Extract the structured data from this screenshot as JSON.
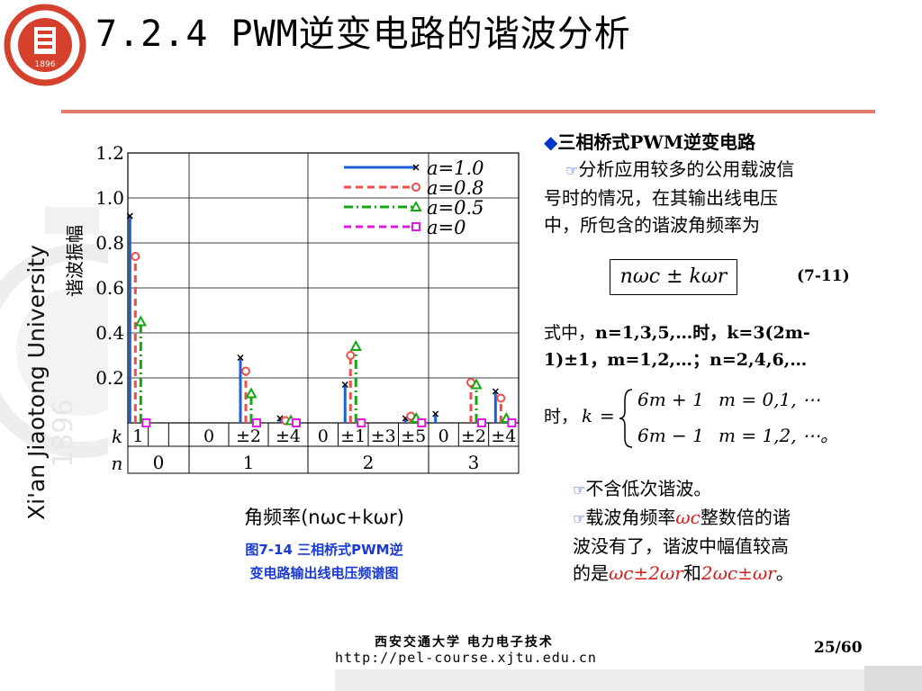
{
  "slide": {
    "title": "7.2.4 PWM逆变电路的谐波分析",
    "logo_year": "1896",
    "university": "Xi'an Jiaotong University",
    "watermark_year": "1896",
    "page": "25/60",
    "footer_cn": "西安交通大学 电力电子技术",
    "footer_url": "http://pel-course.xjtu.edu.cn"
  },
  "right_panel": {
    "bullet_glyph": "◆",
    "bullet": "三相桥式PWM逆变电路",
    "hand_glyph": "☞",
    "para1_line1": "分析应用较多的公用载波信",
    "para1_line2": "号时的情况，在其输出线电压",
    "para1_line3": "中，所包含的谐波角频率为",
    "formula": "nωc ± kωr",
    "eq_number": "(7-11)",
    "cond_line1_a": "式中，",
    "cond_line1_b": "n=1,3,5,…时，k=3(2m-",
    "cond_line2": "1)±1，m=1,2,…；n=2,4,6,…",
    "piece_prefix": "时，",
    "piece_k": "k",
    "piece_eq": "=",
    "piece_case1": "6m + 1",
    "piece_cond1": "m = 0,1, ⋯",
    "piece_case2": "6m − 1",
    "piece_cond2": "m = 1,2, ⋯。",
    "note1": "不含低次谐波。",
    "note2_line1_a": "载波角频率",
    "note2_line1_b": "ωc",
    "note2_line1_c": "整数倍的谐",
    "note2_line2": "波没有了，谐波中幅值较高",
    "note2_line3_a": "的是",
    "note2_line3_b": "ωc±2ωr",
    "note2_line3_c": "和",
    "note2_line3_d": "2ωc±ωr",
    "note2_line3_e": "。"
  },
  "chart_data": {
    "type": "bar",
    "ylabel": "谐波振幅",
    "xlabel": "角频率(nωc+kωr)",
    "caption_line1": "图7-14  三相桥式PWM逆",
    "caption_line2": "变电路输出线电压频谱图",
    "ylim": [
      0,
      1.2
    ],
    "yticks": [
      "1.2",
      "1.0",
      "0.8",
      "0.6",
      "0.4",
      "0.2"
    ],
    "row_labels": {
      "k": "k",
      "n": "n"
    },
    "groups": [
      {
        "n": "0",
        "k_labels": [
          "1",
          "",
          ""
        ]
      },
      {
        "n": "1",
        "k_labels": [
          "0",
          "±2",
          "±4"
        ]
      },
      {
        "n": "2",
        "k_labels": [
          "0",
          "±1",
          "±3",
          "±5"
        ]
      },
      {
        "n": "3",
        "k_labels": [
          "0",
          "±2",
          "±4"
        ]
      }
    ],
    "legend": [
      {
        "label": "a=1.0",
        "color": "#1f5fd6",
        "marker": "x",
        "dash": "solid"
      },
      {
        "label": "a=0.8",
        "color": "#ef4c4c",
        "marker": "o",
        "dash": "dash"
      },
      {
        "label": "a=0.5",
        "color": "#13a813",
        "marker": "tri",
        "dash": "dashdot"
      },
      {
        "label": "a=0",
        "color": "#e01ae0",
        "marker": "sq",
        "dash": "dash"
      }
    ],
    "series": [
      {
        "name": "a=1.0",
        "values": [
          {
            "group": 0,
            "k": "1",
            "y": 0.92
          },
          {
            "group": 1,
            "k": "±2",
            "y": 0.29
          },
          {
            "group": 1,
            "k": "±4",
            "y": 0.02
          },
          {
            "group": 2,
            "k": "±1",
            "y": 0.17
          },
          {
            "group": 2,
            "k": "±5",
            "y": 0.02
          },
          {
            "group": 3,
            "k": "0",
            "y": 0.04
          },
          {
            "group": 3,
            "k": "±4",
            "y": 0.14
          }
        ]
      },
      {
        "name": "a=0.8",
        "values": [
          {
            "group": 0,
            "k": "1",
            "y": 0.74
          },
          {
            "group": 1,
            "k": "±2",
            "y": 0.23
          },
          {
            "group": 1,
            "k": "±4",
            "y": 0.01
          },
          {
            "group": 2,
            "k": "±1",
            "y": 0.3
          },
          {
            "group": 2,
            "k": "±5",
            "y": 0.03
          },
          {
            "group": 3,
            "k": "±2",
            "y": 0.18
          },
          {
            "group": 3,
            "k": "±4",
            "y": 0.11
          }
        ]
      },
      {
        "name": "a=0.5",
        "values": [
          {
            "group": 0,
            "k": "1",
            "y": 0.45
          },
          {
            "group": 1,
            "k": "±2",
            "y": 0.13
          },
          {
            "group": 1,
            "k": "±4",
            "y": 0.01
          },
          {
            "group": 2,
            "k": "±1",
            "y": 0.34
          },
          {
            "group": 2,
            "k": "±5",
            "y": 0.02
          },
          {
            "group": 3,
            "k": "±2",
            "y": 0.17
          },
          {
            "group": 3,
            "k": "±4",
            "y": 0.02
          }
        ]
      },
      {
        "name": "a=0",
        "values": [
          {
            "group": 0,
            "k": "1",
            "y": 0.0
          },
          {
            "group": 1,
            "k": "±2",
            "y": 0.0
          },
          {
            "group": 1,
            "k": "±4",
            "y": 0.0
          },
          {
            "group": 2,
            "k": "±1",
            "y": 0.0
          },
          {
            "group": 2,
            "k": "±5",
            "y": 0.0
          },
          {
            "group": 3,
            "k": "±2",
            "y": 0.0
          },
          {
            "group": 3,
            "k": "±4",
            "y": 0.0
          }
        ]
      }
    ]
  }
}
